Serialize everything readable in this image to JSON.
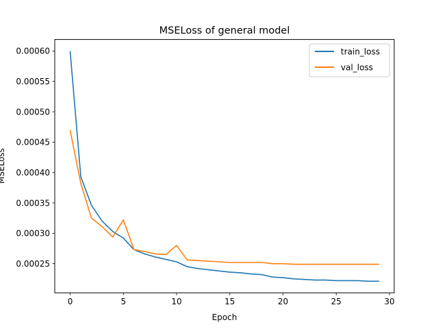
{
  "chart_data": {
    "type": "line",
    "title": "MSELoss of general model",
    "xlabel": "Epoch",
    "ylabel": "MSELoss",
    "xlim": [
      -1.45,
      30.45
    ],
    "ylim": [
      0.000202,
      0.000619
    ],
    "xticks": [
      0,
      5,
      10,
      15,
      20,
      25,
      30
    ],
    "xtick_labels": [
      "0",
      "5",
      "10",
      "15",
      "20",
      "25",
      "30"
    ],
    "yticks": [
      0.00025,
      0.0003,
      0.00035,
      0.0004,
      0.00045,
      0.0005,
      0.00055,
      0.0006
    ],
    "ytick_labels": [
      "0.00025",
      "0.00030",
      "0.00035",
      "0.00040",
      "0.00045",
      "0.00050",
      "0.00055",
      "0.00060"
    ],
    "grid": false,
    "legend_position": "top-right",
    "x": [
      0,
      1,
      2,
      3,
      4,
      5,
      6,
      7,
      8,
      9,
      10,
      11,
      12,
      13,
      14,
      15,
      16,
      17,
      18,
      19,
      20,
      21,
      22,
      23,
      24,
      25,
      26,
      27,
      28,
      29
    ],
    "series": [
      {
        "name": "train_loss",
        "color": "#1f77b4",
        "values": [
          0.000599,
          0.000393,
          0.000346,
          0.00032,
          0.000303,
          0.000292,
          0.000273,
          0.000266,
          0.000261,
          0.000257,
          0.000253,
          0.000245,
          0.000242,
          0.00024,
          0.000238,
          0.000236,
          0.000235,
          0.000233,
          0.000232,
          0.000228,
          0.000227,
          0.000225,
          0.000224,
          0.000223,
          0.000223,
          0.000222,
          0.000222,
          0.000222,
          0.000221,
          0.000221
        ]
      },
      {
        "name": "val_loss",
        "color": "#ff7f0e",
        "values": [
          0.000469,
          0.000382,
          0.000325,
          0.000311,
          0.000294,
          0.000322,
          0.000273,
          0.00027,
          0.000266,
          0.000265,
          0.00028,
          0.000256,
          0.000255,
          0.000254,
          0.000253,
          0.000252,
          0.000252,
          0.000252,
          0.000252,
          0.00025,
          0.00025,
          0.000249,
          0.000249,
          0.000249,
          0.000249,
          0.000249,
          0.000249,
          0.000249,
          0.000249,
          0.000249
        ]
      }
    ]
  }
}
